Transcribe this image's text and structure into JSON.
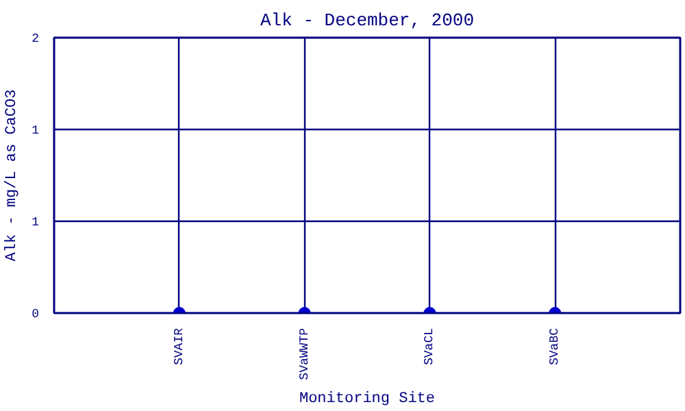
{
  "chart_data": {
    "type": "scatter",
    "title": "Alk - December, 2000",
    "xlabel": "Monitoring Site",
    "ylabel": "Alk - mg/L as CaCO3",
    "categories": [
      "SVAIR",
      "SVaWWTP",
      "SVaCL",
      "SVaBC"
    ],
    "series": [
      {
        "color": "#0000cc",
        "values": [
          0,
          0,
          0,
          0
        ]
      }
    ],
    "ylim": [
      0,
      2
    ],
    "yticks": [
      0,
      {
        "value": 0.667,
        "label": "1"
      },
      {
        "value": 1.333,
        "label": "1"
      },
      2
    ],
    "grid": true,
    "marker": "circle"
  }
}
